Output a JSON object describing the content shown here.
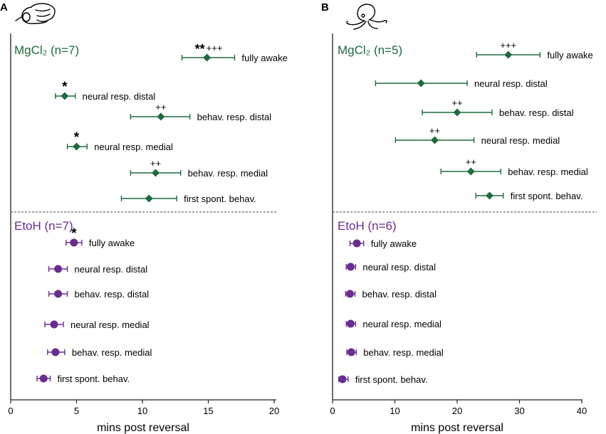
{
  "figure": {
    "x_label": "mins post reversal"
  },
  "colors": {
    "mgcl2": "#1d6b3e",
    "etoh": "#6a2c91",
    "axis": "#222222"
  },
  "chart_data": [
    {
      "type": "scatter",
      "panel_label": "A",
      "icon": "mouse-brain-icon",
      "xlim": [
        0,
        20
      ],
      "xticks": [
        0,
        5,
        10,
        15,
        20
      ],
      "xlabel": "mins post reversal",
      "groups": [
        {
          "name": "MgCl₂ (n=7)",
          "marker": "diamond",
          "color": "#1d6b3e",
          "points": [
            {
              "label": "fully awake",
              "mean": 14.9,
              "low": 13.0,
              "high": 17.0,
              "sig": "**",
              "plus": "+++"
            },
            {
              "label": "neural resp. distal",
              "mean": 4.1,
              "low": 3.4,
              "high": 4.9,
              "sig": "*",
              "plus": ""
            },
            {
              "label": "behav. resp. distal",
              "mean": 11.4,
              "low": 9.1,
              "high": 13.6,
              "sig": "",
              "plus": "++"
            },
            {
              "label": "neural resp. medial",
              "mean": 5.0,
              "low": 4.3,
              "high": 5.8,
              "sig": "*",
              "plus": ""
            },
            {
              "label": "behav. resp. medial",
              "mean": 11.0,
              "low": 9.1,
              "high": 12.9,
              "sig": "",
              "plus": "++"
            },
            {
              "label": "first spont. behav.",
              "mean": 10.5,
              "low": 8.4,
              "high": 12.6,
              "sig": "",
              "plus": ""
            }
          ]
        },
        {
          "name": "EtoH (n=7)",
          "marker": "circle",
          "color": "#6a2c91",
          "points": [
            {
              "label": "fully awake",
              "mean": 4.8,
              "low": 4.2,
              "high": 5.4,
              "sig": "*",
              "plus": ""
            },
            {
              "label": "neural resp. distal",
              "mean": 3.6,
              "low": 2.9,
              "high": 4.3,
              "sig": "",
              "plus": ""
            },
            {
              "label": "behav. resp. distal",
              "mean": 3.6,
              "low": 2.9,
              "high": 4.3,
              "sig": "",
              "plus": ""
            },
            {
              "label": "neural resp. medial",
              "mean": 3.3,
              "low": 2.6,
              "high": 4.0,
              "sig": "",
              "plus": ""
            },
            {
              "label": "behav. resp. medial",
              "mean": 3.4,
              "low": 2.8,
              "high": 4.1,
              "sig": "",
              "plus": ""
            },
            {
              "label": "first spont. behav.",
              "mean": 2.5,
              "low": 2.0,
              "high": 3.0,
              "sig": "",
              "plus": ""
            }
          ]
        }
      ]
    },
    {
      "type": "scatter",
      "panel_label": "B",
      "icon": "octopus-icon",
      "xlim": [
        0,
        40
      ],
      "xticks": [
        0,
        10,
        20,
        30,
        40
      ],
      "xlabel": "mins post reversal",
      "groups": [
        {
          "name": "MgCl₂ (n=5)",
          "marker": "diamond",
          "color": "#1d6b3e",
          "points": [
            {
              "label": "fully awake",
              "mean": 28.2,
              "low": 23.1,
              "high": 33.3,
              "sig": "",
              "plus": "+++"
            },
            {
              "label": "neural resp. distal",
              "mean": 14.2,
              "low": 6.9,
              "high": 21.6,
              "sig": "",
              "plus": ""
            },
            {
              "label": "behav. resp. distal",
              "mean": 20.0,
              "low": 14.4,
              "high": 25.6,
              "sig": "",
              "plus": "++"
            },
            {
              "label": "neural resp. medial",
              "mean": 16.4,
              "low": 10.1,
              "high": 22.7,
              "sig": "",
              "plus": "++"
            },
            {
              "label": "behav. resp. medial",
              "mean": 22.2,
              "low": 17.4,
              "high": 27.0,
              "sig": "",
              "plus": "++"
            },
            {
              "label": "first spont. behav.",
              "mean": 25.2,
              "low": 23.0,
              "high": 27.4,
              "sig": "",
              "plus": ""
            }
          ]
        },
        {
          "name": "EtoH (n=6)",
          "marker": "circle",
          "color": "#6a2c91",
          "points": [
            {
              "label": "fully awake",
              "mean": 3.9,
              "low": 2.8,
              "high": 5.0,
              "sig": "",
              "plus": ""
            },
            {
              "label": "neural resp. distal",
              "mean": 2.9,
              "low": 2.2,
              "high": 3.7,
              "sig": "",
              "plus": ""
            },
            {
              "label": "behav. resp. distal",
              "mean": 2.8,
              "low": 2.1,
              "high": 3.6,
              "sig": "",
              "plus": ""
            },
            {
              "label": "neural resp. medial",
              "mean": 2.9,
              "low": 2.2,
              "high": 3.7,
              "sig": "",
              "plus": ""
            },
            {
              "label": "behav. resp. medial",
              "mean": 3.0,
              "low": 2.3,
              "high": 3.8,
              "sig": "",
              "plus": ""
            },
            {
              "label": "first spont. behav.",
              "mean": 1.6,
              "low": 1.0,
              "high": 2.5,
              "sig": "",
              "plus": ""
            }
          ]
        }
      ]
    }
  ]
}
